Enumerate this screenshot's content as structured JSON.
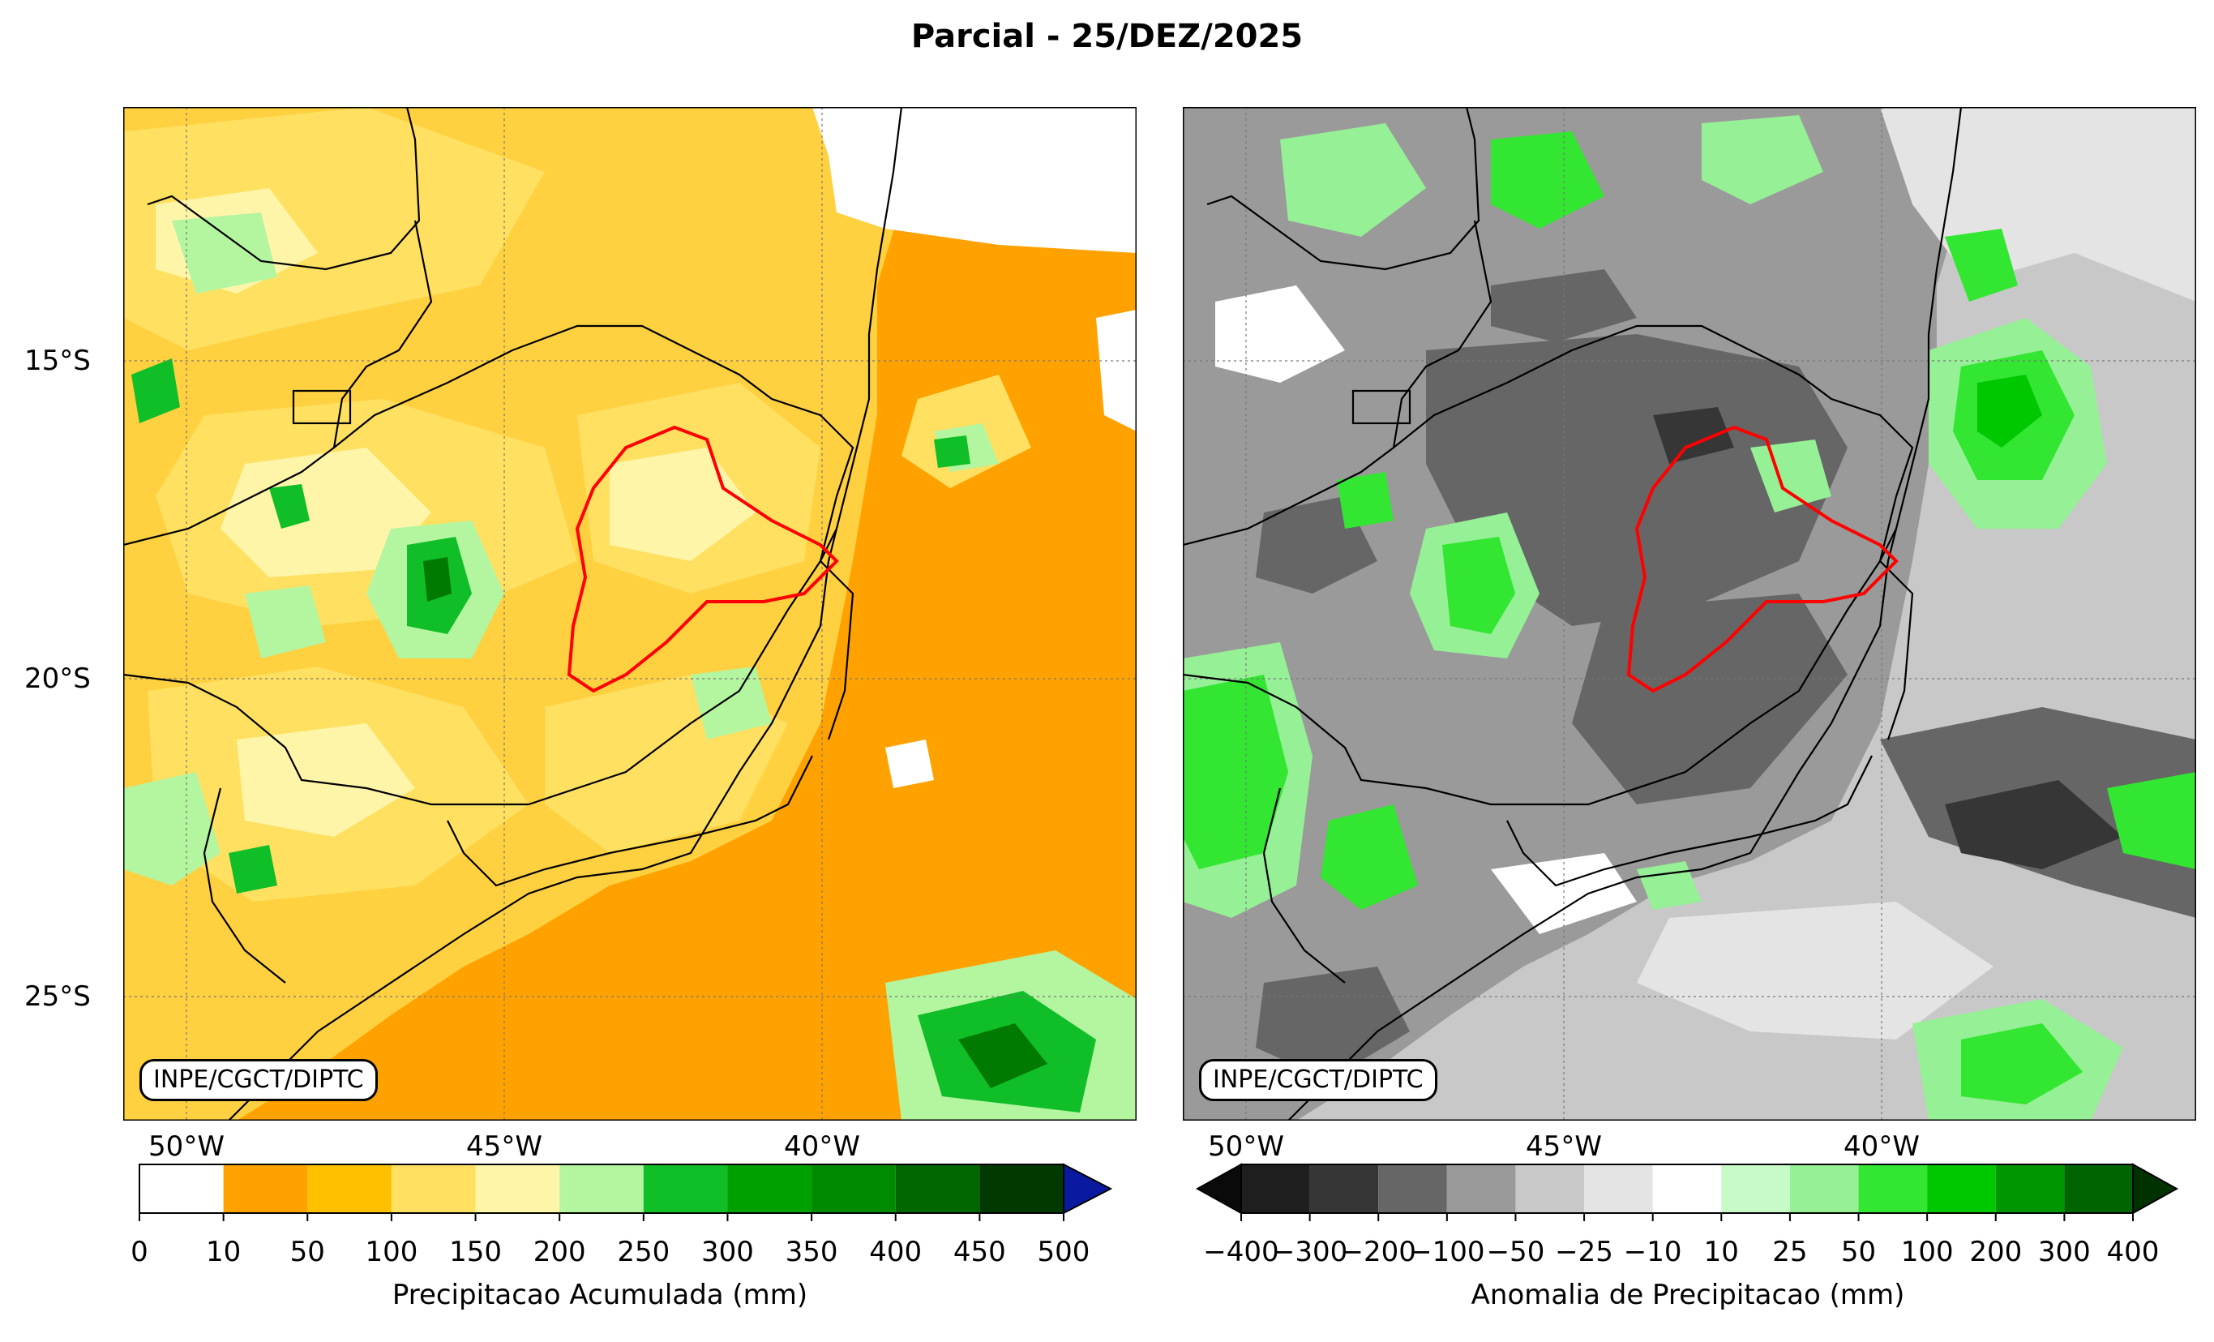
{
  "title": "Parcial - 25/DEZ/2025",
  "colors": {
    "orange_dark": "#FFA200",
    "orange_mid": "#FFC000",
    "yellow": "#FFE060",
    "pale_yellow": "#FFF5A8",
    "light_green": "#B4F5A0",
    "green": "#10BE28",
    "dark_green": "#00A000",
    "darker_green": "#007A00",
    "basin_outline": "#FF0000",
    "overflow_arrow": "#0A1AA0"
  },
  "left_map": {
    "credit": "INPE/CGCT/DIPTC",
    "lon_labels": [
      "50°W",
      "45°W",
      "40°W"
    ],
    "lat_labels": [
      "15°S",
      "20°S",
      "25°S"
    ],
    "colorbar": {
      "ticks": [
        "0",
        "10",
        "50",
        "100",
        "150",
        "200",
        "250",
        "300",
        "350",
        "400",
        "450",
        "500"
      ],
      "colors": [
        "#FFFFFF",
        "#FFA200",
        "#FFC000",
        "#FFE060",
        "#FFF5A8",
        "#B4F5A0",
        "#10BE28",
        "#00A000",
        "#008A00",
        "#006600",
        "#003A00"
      ],
      "extend_color": "#0A1AA0",
      "label": "Precipitacao Acumulada (mm)"
    }
  },
  "right_map": {
    "credit": "INPE/CGCT/DIPTC",
    "lon_labels": [
      "50°W",
      "45°W",
      "40°W"
    ],
    "colorbar": {
      "ticks": [
        "−400",
        "−300",
        "−200",
        "−100",
        "−50",
        "−25",
        "−10",
        "10",
        "25",
        "50",
        "100",
        "200",
        "300",
        "400"
      ],
      "colors": [
        "#1E1E1E",
        "#363636",
        "#666666",
        "#9A9A9A",
        "#C8C8C8",
        "#E4E4E4",
        "#FFFFFF",
        "#C8FAC8",
        "#96F096",
        "#32E632",
        "#00C800",
        "#009600",
        "#006400"
      ],
      "low_extend_color": "#0A0A0A",
      "high_extend_color": "#003200",
      "label": "Anomalia de Precipitacao (mm)"
    }
  }
}
